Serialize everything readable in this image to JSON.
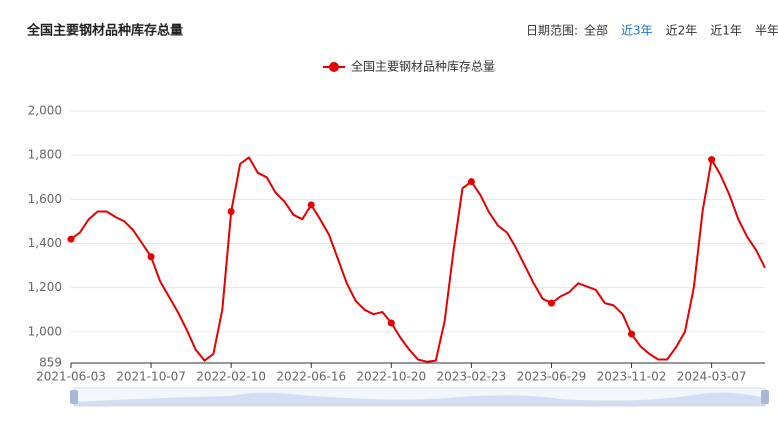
{
  "chart_data": {
    "type": "line",
    "title": "全国主要钢材品种库存总量",
    "categories": [
      "2021-06-03",
      null,
      null,
      null,
      null,
      null,
      null,
      null,
      null,
      "2021-10-07",
      null,
      null,
      null,
      null,
      null,
      null,
      null,
      null,
      "2022-02-10",
      null,
      null,
      null,
      null,
      null,
      null,
      null,
      null,
      "2022-06-16",
      null,
      null,
      null,
      null,
      null,
      null,
      null,
      null,
      "2022-10-20",
      null,
      null,
      null,
      null,
      null,
      null,
      null,
      null,
      "2023-02-23",
      null,
      null,
      null,
      null,
      null,
      null,
      null,
      null,
      "2023-06-29",
      null,
      null,
      null,
      null,
      null,
      null,
      null,
      null,
      "2023-11-02",
      null,
      null,
      null,
      null,
      null,
      null,
      null,
      null,
      "2024-03-07",
      null,
      null,
      null,
      null,
      null,
      null
    ],
    "series": [
      {
        "name": "全国主要钢材品种库存总量",
        "color": "#e60000",
        "values": [
          1420,
          1450,
          1510,
          1545,
          1545,
          1520,
          1500,
          1460,
          1400,
          1340,
          1230,
          1160,
          1090,
          1010,
          920,
          870,
          900,
          1100,
          1545,
          1760,
          1790,
          1720,
          1700,
          1630,
          1590,
          1530,
          1510,
          1575,
          1510,
          1440,
          1330,
          1220,
          1140,
          1100,
          1080,
          1090,
          1040,
          975,
          920,
          875,
          865,
          870,
          1050,
          1370,
          1650,
          1680,
          1620,
          1540,
          1480,
          1450,
          1380,
          1300,
          1220,
          1150,
          1130,
          1160,
          1180,
          1220,
          1205,
          1190,
          1130,
          1120,
          1080,
          990,
          935,
          900,
          875,
          875,
          930,
          1000,
          1200,
          1550,
          1780,
          1710,
          1620,
          1510,
          1430,
          1370,
          1290
        ]
      }
    ],
    "ylim": [
      859,
      2000
    ],
    "yticks": [
      859,
      {
        "value": 1000,
        "label": "1,000"
      },
      {
        "value": 1200,
        "label": "1,200"
      },
      {
        "value": 1400,
        "label": "1,400"
      },
      {
        "value": 1600,
        "label": "1,600"
      },
      {
        "value": 1800,
        "label": "1,800"
      },
      {
        "value": 2000,
        "label": "2,000"
      }
    ],
    "grid": true
  },
  "controls": {
    "label": "日期范围:",
    "options": [
      "全部",
      "近3年",
      "近2年",
      "近1年",
      "半年"
    ],
    "active": 1
  }
}
